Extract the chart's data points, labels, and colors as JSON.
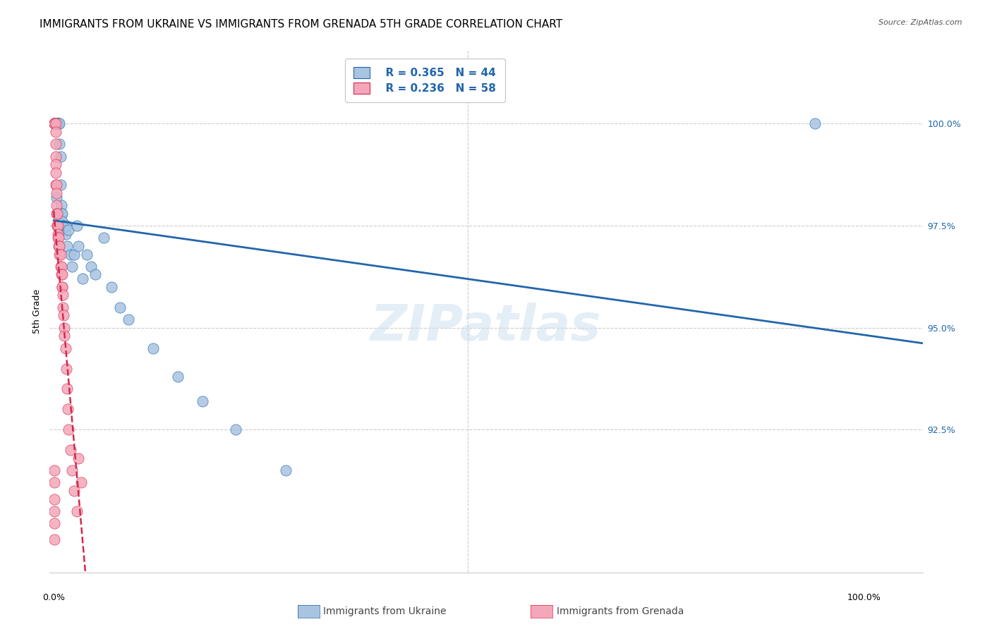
{
  "title": "IMMIGRANTS FROM UKRAINE VS IMMIGRANTS FROM GRENADA 5TH GRADE CORRELATION CHART",
  "source": "Source: ZipAtlas.com",
  "ylabel": "5th Grade",
  "ymin": 89.0,
  "ymax": 101.8,
  "xmin": -0.005,
  "xmax": 1.05,
  "legend_blue_r": "R = 0.365",
  "legend_blue_n": "N = 44",
  "legend_pink_r": "R = 0.236",
  "legend_pink_n": "N = 58",
  "legend_blue_label": "Immigrants from Ukraine",
  "legend_pink_label": "Immigrants from Grenada",
  "blue_color": "#a8c4e0",
  "pink_color": "#f4a7b9",
  "blue_line_color": "#2166ac",
  "pink_line_color": "#d6274d",
  "title_fontsize": 11,
  "watermark": "ZIPatlas",
  "ukraine_x": [
    0.002,
    0.004,
    0.004,
    0.005,
    0.005,
    0.005,
    0.006,
    0.006,
    0.006,
    0.007,
    0.007,
    0.008,
    0.008,
    0.009,
    0.009,
    0.01,
    0.01,
    0.011,
    0.012,
    0.013,
    0.014,
    0.015,
    0.016,
    0.018,
    0.02,
    0.022,
    0.025,
    0.028,
    0.03,
    0.035,
    0.04,
    0.045,
    0.05,
    0.06,
    0.07,
    0.08,
    0.09,
    0.12,
    0.15,
    0.18,
    0.22,
    0.28,
    0.92,
    0.003
  ],
  "ukraine_y": [
    100.0,
    100.0,
    100.0,
    100.0,
    100.0,
    100.0,
    100.0,
    100.0,
    100.0,
    100.0,
    99.5,
    99.2,
    98.5,
    98.0,
    97.8,
    97.8,
    97.6,
    97.5,
    97.5,
    97.4,
    97.3,
    97.5,
    97.0,
    97.4,
    96.8,
    96.5,
    96.8,
    97.5,
    97.0,
    96.2,
    96.8,
    96.5,
    96.3,
    97.2,
    96.0,
    95.5,
    95.2,
    94.5,
    93.8,
    93.2,
    92.5,
    91.5,
    100.0,
    98.2
  ],
  "grenada_x": [
    0.001,
    0.001,
    0.001,
    0.001,
    0.001,
    0.001,
    0.001,
    0.001,
    0.002,
    0.002,
    0.002,
    0.002,
    0.002,
    0.002,
    0.002,
    0.003,
    0.003,
    0.003,
    0.003,
    0.004,
    0.004,
    0.004,
    0.005,
    0.005,
    0.005,
    0.006,
    0.006,
    0.007,
    0.007,
    0.008,
    0.008,
    0.009,
    0.009,
    0.01,
    0.01,
    0.01,
    0.011,
    0.011,
    0.012,
    0.013,
    0.013,
    0.014,
    0.015,
    0.016,
    0.017,
    0.018,
    0.02,
    0.022,
    0.025,
    0.028,
    0.03,
    0.033,
    0.001,
    0.001,
    0.001,
    0.001,
    0.001,
    0.001
  ],
  "grenada_y": [
    100.0,
    100.0,
    100.0,
    100.0,
    100.0,
    100.0,
    100.0,
    100.0,
    100.0,
    99.8,
    99.5,
    99.2,
    99.0,
    98.8,
    98.5,
    98.5,
    98.3,
    98.0,
    97.8,
    97.8,
    97.5,
    97.5,
    97.5,
    97.3,
    97.2,
    97.2,
    97.0,
    97.0,
    96.8,
    96.8,
    96.5,
    96.5,
    96.3,
    96.3,
    96.0,
    96.0,
    95.8,
    95.5,
    95.3,
    95.0,
    94.8,
    94.5,
    94.0,
    93.5,
    93.0,
    92.5,
    92.0,
    91.5,
    91.0,
    90.5,
    91.8,
    91.2,
    91.5,
    91.2,
    90.8,
    90.5,
    90.2,
    89.8
  ]
}
